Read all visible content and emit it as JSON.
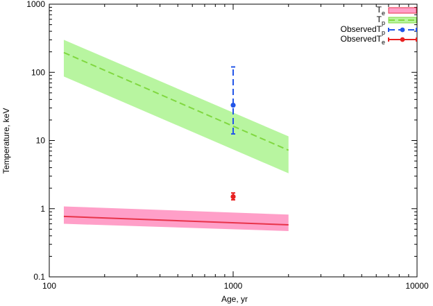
{
  "chart_data": {
    "type": "line",
    "xlabel": "Age, yr",
    "ylabel": "Temperature, keV",
    "xscale": "log",
    "yscale": "log",
    "xlim": [
      100,
      10000
    ],
    "ylim": [
      0.1,
      1000
    ],
    "x_ticks": [
      {
        "value": 100,
        "label": "100"
      },
      {
        "value": 1000,
        "label": "1000"
      },
      {
        "value": 10000,
        "label": "10000"
      }
    ],
    "y_ticks": [
      {
        "value": 0.1,
        "label": "0.1"
      },
      {
        "value": 1,
        "label": "1"
      },
      {
        "value": 10,
        "label": "10"
      },
      {
        "value": 100,
        "label": "100"
      },
      {
        "value": 1000,
        "label": "1000"
      }
    ],
    "grid": false,
    "legend_position": "top-right",
    "bands": [
      {
        "name_main": "T",
        "name_sub": "e",
        "color": "#ff9fc8",
        "edge": "#e8334a",
        "x": [
          120,
          2000
        ],
        "lower": [
          0.6,
          0.47
        ],
        "center": [
          0.77,
          0.58
        ],
        "upper": [
          1.08,
          0.82
        ]
      },
      {
        "name_main": "T",
        "name_sub": "p",
        "color": "#b8f5a0",
        "edge": "#80d840",
        "x": [
          120,
          2000
        ],
        "lower": [
          87,
          3.3
        ],
        "center": [
          195,
          7.2
        ],
        "upper": [
          300,
          11.5
        ]
      }
    ],
    "observations": [
      {
        "name_main": "ObservedT",
        "name_sub": "p",
        "color": "#2255e8",
        "x": 1000,
        "y": 33,
        "y_low": 12.5,
        "y_high": 120
      },
      {
        "name_main": "ObservedT",
        "name_sub": "e",
        "color": "#e82020",
        "x": 1000,
        "y": 1.5,
        "y_low": 1.35,
        "y_high": 1.7
      }
    ]
  }
}
